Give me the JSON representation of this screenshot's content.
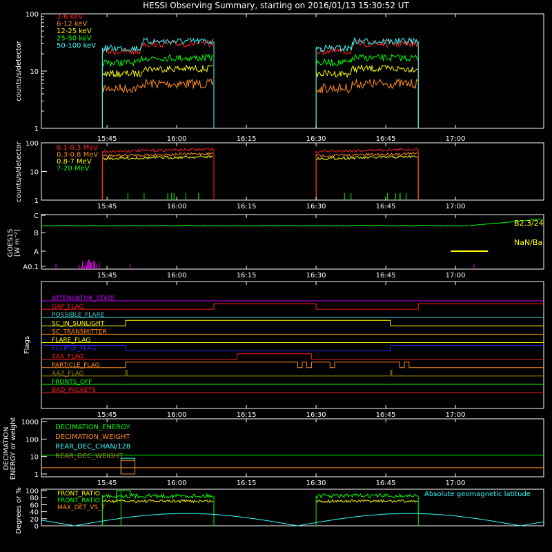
{
  "title": "HESSI Observing Summary, starting on 2016/01/13 15:30:52 UT",
  "time_ticks": [
    "15:45",
    "16:00",
    "16:15",
    "16:30",
    "16:45",
    "17:00"
  ],
  "colors": {
    "red": "#ff2020",
    "orange": "#ff8c1a",
    "yellow": "#ffff00",
    "green": "#00ff00",
    "cyan": "#33ffff",
    "magenta": "#ff00ff",
    "blue": "#2a2aff",
    "white": "#ffffff"
  },
  "chart_data": [
    {
      "type": "line",
      "name": "count_rates_low",
      "ylabel": "counts/s/detector",
      "yscale": "log",
      "ylim": [
        1,
        100
      ],
      "yticks": [
        "1",
        "10",
        "100"
      ],
      "legend": [
        "3-6 keV",
        "6-12 keV",
        "12-25 keV",
        "25-50 keV",
        "50-100 keV"
      ],
      "legend_colors": [
        "#ff2020",
        "#ff8c1a",
        "#ffff00",
        "#00ff00",
        "#33ffff"
      ],
      "coverage": [
        [
          "15:44",
          "16:08"
        ],
        [
          "16:30",
          "16:52"
        ]
      ],
      "series": [
        {
          "name": "3-6 keV",
          "level": [
            22,
            30
          ]
        },
        {
          "name": "6-12 keV",
          "level": [
            5,
            6
          ]
        },
        {
          "name": "12-25 keV",
          "level": [
            9,
            11
          ]
        },
        {
          "name": "25-50 keV",
          "level": [
            14,
            17
          ]
        },
        {
          "name": "50-100 keV",
          "level": [
            25,
            33
          ]
        }
      ]
    },
    {
      "type": "line",
      "name": "count_rates_high",
      "ylabel": "counts/s/detector",
      "yscale": "log",
      "ylim": [
        1,
        100
      ],
      "yticks": [
        "1",
        "10",
        "100"
      ],
      "legend": [
        "0.1-0.3 MeV",
        "0.3-0.8 MeV",
        "0.8-7 MeV",
        "7-20 MeV"
      ],
      "legend_colors": [
        "#ff2020",
        "#ff8c1a",
        "#ffff00",
        "#00ff00"
      ],
      "series": [
        {
          "name": "0.1-0.3 MeV",
          "level": [
            50,
            60
          ]
        },
        {
          "name": "0.3-0.8 MeV",
          "level": [
            35,
            42
          ]
        },
        {
          "name": "0.8-7 MeV",
          "level": [
            28,
            33
          ]
        },
        {
          "name": "7-20 MeV",
          "level": [
            1,
            1
          ]
        }
      ]
    },
    {
      "type": "line",
      "name": "goes",
      "ylabel": "GOES15",
      "ylabel2": "[W m⁻²]",
      "yticks": [
        "A0.1",
        "A",
        "B",
        "C"
      ],
      "labels": [
        "B2.3/24",
        "NaN/Ba"
      ]
    },
    {
      "type": "line",
      "name": "flags",
      "ylabel": "Flags",
      "flags": [
        {
          "name": "ATTENUATOR_STATE",
          "color": "#cc00ff"
        },
        {
          "name": "GAP_FLAG",
          "color": "#ff2020"
        },
        {
          "name": "POSSIBLE_FLARE",
          "color": "#33cccc"
        },
        {
          "name": "SC_IN_SUNLIGHT",
          "color": "#ffff00"
        },
        {
          "name": "SC_TRANSMITTER",
          "color": "#ff8c1a"
        },
        {
          "name": "FLARE_FLAG",
          "color": "#ffff00"
        },
        {
          "name": "ECLIPSE_FLAG",
          "color": "#2a2aff"
        },
        {
          "name": "SAA_FLAG",
          "color": "#ff2020"
        },
        {
          "name": "PARTICLE_FLAG",
          "color": "#ff8c1a"
        },
        {
          "name": "AAZ_FLAG",
          "color": "#998800"
        },
        {
          "name": "FRONTS_OFF",
          "color": "#00ff00"
        },
        {
          "name": "BAD_PACKETS",
          "color": "#ff2020"
        }
      ]
    },
    {
      "type": "line",
      "name": "decimation",
      "ylabel": "DECIMATION",
      "ylabel2": "ENERGY or weight",
      "yscale": "log",
      "ylim": [
        1,
        1000
      ],
      "yticks": [
        "1",
        "10",
        "100",
        "1000"
      ],
      "legend": [
        "DECIMATION_ENERGY",
        "DECIMATION_WEIGHT",
        "REAR_DEC_CHAN/128",
        "REAR_DEC_WEIGHT"
      ],
      "legend_colors": [
        "#00ff00",
        "#ff8c1a",
        "#33ffff",
        "#998800"
      ]
    },
    {
      "type": "line",
      "name": "ratios",
      "ylabel": "Degrees or %",
      "ylim": [
        0,
        100
      ],
      "yticks": [
        "0",
        "20",
        "40",
        "60",
        "80",
        "100"
      ],
      "legend": [
        "FRONT_RATIO",
        "FRONT_RATIO",
        "MAX_DET_VS_T"
      ],
      "legend_colors": [
        "#ffff00",
        "#00ff00",
        "#ff8c1a"
      ],
      "annotation": "Absolute geomagnetic latitude",
      "series": [
        {
          "name": "FRONT_RATIO (yellow)",
          "level": [
            70,
            70
          ]
        },
        {
          "name": "FRONT_RATIO (green)",
          "level": [
            85,
            85
          ]
        },
        {
          "name": "Absolute geomagnetic latitude",
          "min": 0,
          "max": 35
        }
      ]
    }
  ]
}
